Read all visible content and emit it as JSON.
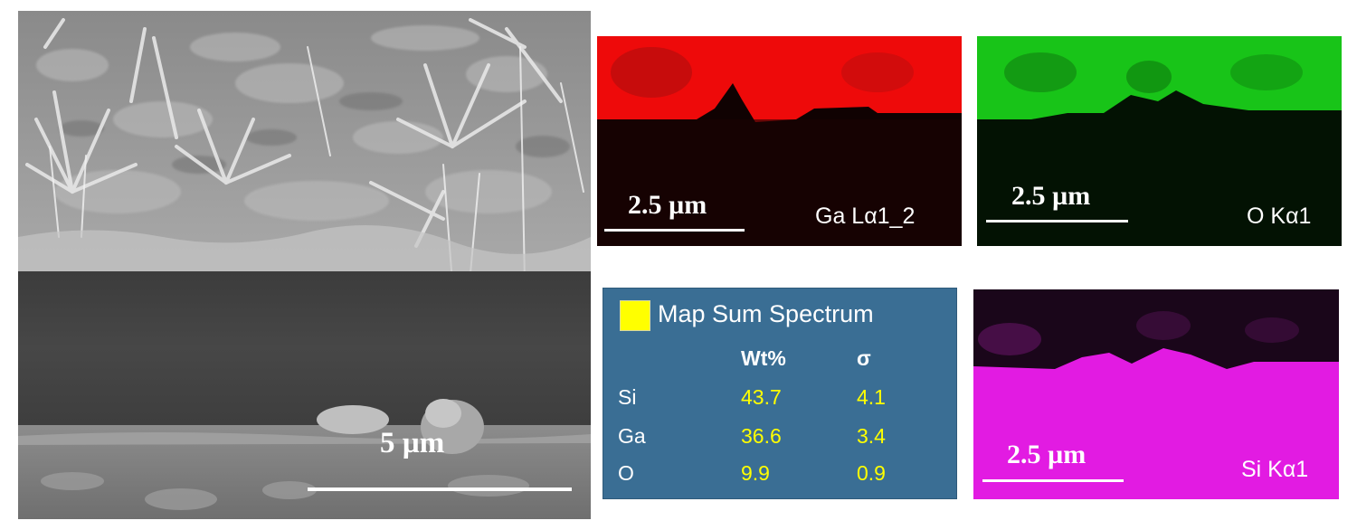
{
  "sem": {
    "scale_label": "5 µm"
  },
  "eds_maps": {
    "ga": {
      "scale_label": "2.5 µm",
      "element_label": "Ga Lα1_2",
      "color": "#ff0000"
    },
    "o": {
      "scale_label": "2.5 µm",
      "element_label": "O Kα1",
      "color": "#00ff00"
    },
    "si": {
      "scale_label": "2.5 µm",
      "element_label": "Si Kα1",
      "color": "#ff00ff"
    }
  },
  "spectrum": {
    "title": "Map Sum Spectrum",
    "swatch_color": "#ffff00",
    "columns": [
      "Wt%",
      "σ"
    ],
    "rows": [
      {
        "element": "Si",
        "wt": "43.7",
        "sigma": "4.1"
      },
      {
        "element": "Ga",
        "wt": "36.6",
        "sigma": "3.4"
      },
      {
        "element": "O",
        "wt": "9.9",
        "sigma": "0.9"
      }
    ]
  }
}
